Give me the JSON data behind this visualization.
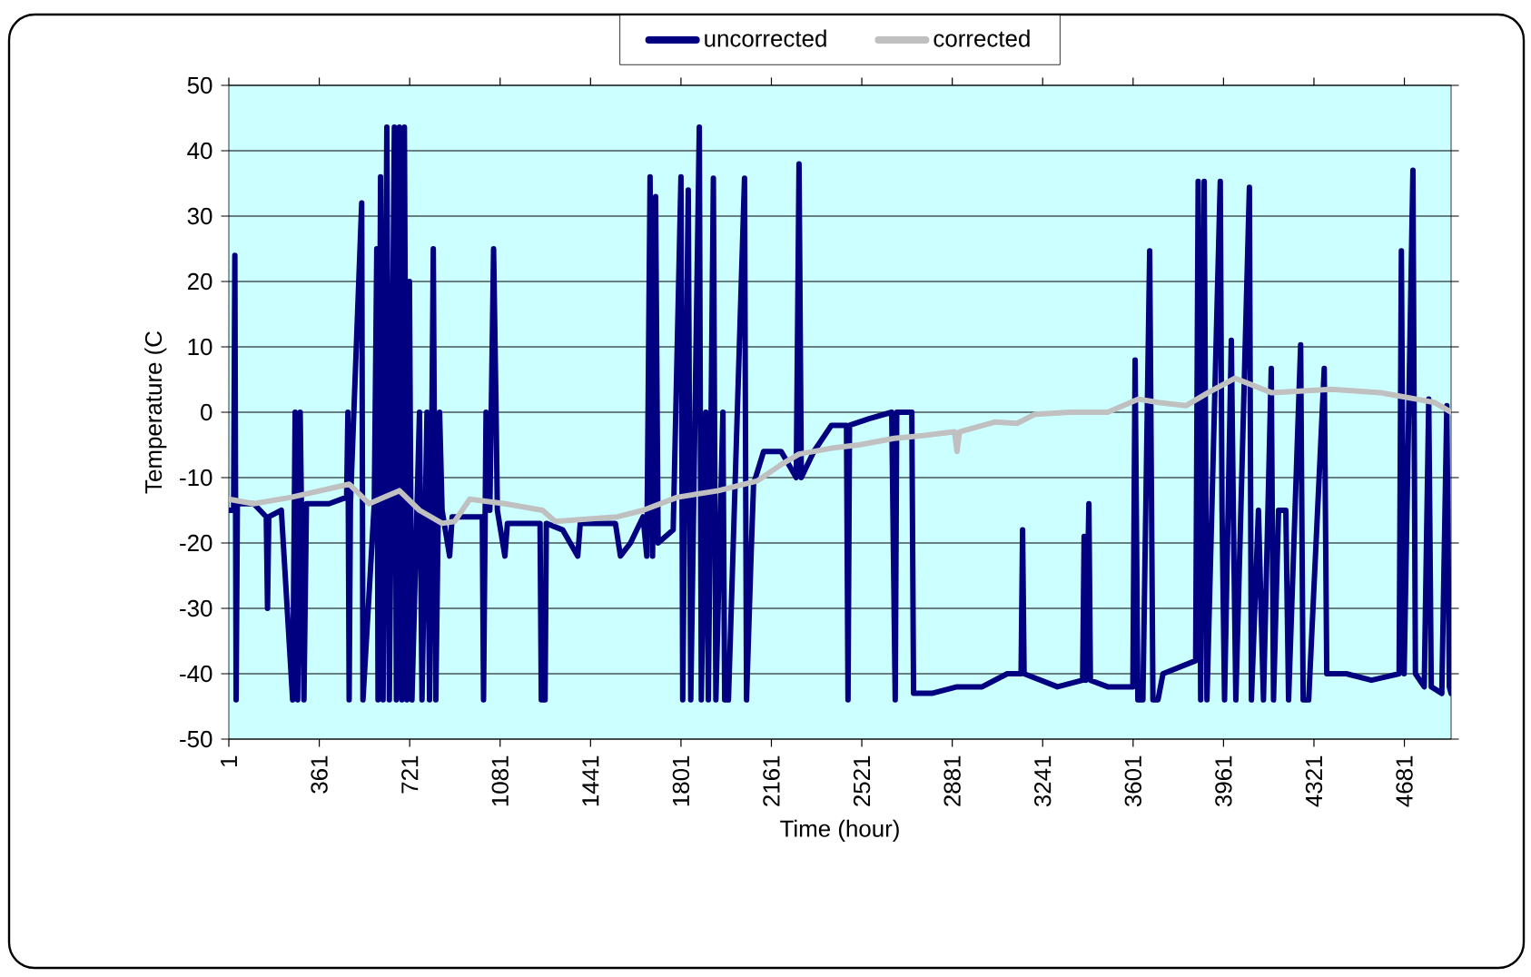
{
  "chart_data": {
    "type": "line",
    "xlabel": "Time (hour)",
    "ylabel": "Temperature (C",
    "xlim": [
      1,
      4867
    ],
    "ylim": [
      -50,
      50
    ],
    "xticks": [
      1,
      361,
      721,
      1081,
      1441,
      1801,
      2161,
      2521,
      2881,
      3241,
      3601,
      3961,
      4321,
      4681
    ],
    "yticks": [
      -50,
      -40,
      -30,
      -20,
      -10,
      0,
      10,
      20,
      30,
      40,
      50
    ],
    "grid": "y",
    "legend": "top",
    "marker": "none",
    "line_style": "solid",
    "series": [
      {
        "name": "uncorrected",
        "color": "#000080",
        "x": [
          1,
          20,
          25,
          30,
          35,
          100,
          150,
          155,
          160,
          210,
          255,
          265,
          275,
          285,
          300,
          310,
          400,
          470,
          475,
          480,
          485,
          530,
          535,
          580,
          590,
          595,
          605,
          615,
          630,
          640,
          660,
          668,
          680,
          690,
          700,
          710,
          720,
          730,
          760,
          770,
          790,
          800,
          815,
          825,
          840,
          850,
          880,
          890,
          1010,
          1015,
          1025,
          1040,
          1055,
          1065,
          1070,
          1100,
          1110,
          1240,
          1245,
          1260,
          1265,
          1330,
          1390,
          1400,
          1540,
          1560,
          1600,
          1650,
          1665,
          1678,
          1688,
          1700,
          1710,
          1770,
          1801,
          1808,
          1815,
          1830,
          1840,
          1874,
          1882,
          1900,
          1910,
          1930,
          1940,
          1968,
          1975,
          1990,
          2054,
          2062,
          2080,
          2090,
          2130,
          2200,
          2260,
          2271,
          2280,
          2330,
          2400,
          2460,
          2466,
          2472,
          2550,
          2640,
          2654,
          2660,
          2720,
          2727,
          2800,
          2900,
          3000,
          3100,
          3155,
          3161,
          3167,
          3300,
          3400,
          3406,
          3412,
          3425,
          3431,
          3500,
          3600,
          3609,
          3620,
          3640,
          3667,
          3680,
          3700,
          3720,
          3850,
          3860,
          3870,
          3884,
          3895,
          3948,
          3955,
          3965,
          3992,
          4000,
          4010,
          4064,
          4072,
          4100,
          4120,
          4151,
          4160,
          4180,
          4209,
          4220,
          4268,
          4278,
          4300,
          4362,
          4372,
          4450,
          4550,
          4660,
          4669,
          4680,
          4715,
          4725,
          4760,
          4778,
          4788,
          4830,
          4850,
          4860,
          4867
        ],
        "values": [
          -15,
          -15,
          24,
          -44,
          -14,
          -14,
          -16,
          -30,
          -16,
          -15,
          -44,
          0,
          -44,
          0,
          -44,
          -14,
          -14,
          -13,
          0,
          -44,
          -14,
          32,
          -44,
          -14,
          25,
          -44,
          36,
          -44,
          43.6,
          -44,
          43.6,
          -44,
          43.6,
          -44,
          43.6,
          -44,
          20,
          -44,
          0,
          -44,
          0,
          -44,
          25,
          -44,
          0,
          -15,
          -22,
          -16,
          -16,
          -44,
          0,
          -15,
          25,
          0,
          -15,
          -22,
          -17,
          -17,
          -44,
          -44,
          -17,
          -18,
          -22,
          -17,
          -17,
          -22,
          -20,
          -16,
          -22,
          36,
          -22,
          33,
          -20,
          -18,
          36,
          -44,
          -16,
          34,
          -44,
          43.6,
          -44,
          0,
          -44,
          35.8,
          -44,
          0,
          -44,
          -44,
          35.8,
          -44,
          -22,
          -11,
          -6,
          -6,
          -10,
          38,
          -10,
          -6,
          -2,
          -2,
          -44,
          -2,
          -1,
          0,
          -44,
          0,
          0,
          -43,
          -43,
          -42,
          -42,
          -40,
          -40,
          -18,
          -40,
          -42,
          -41,
          -19,
          -41,
          -14,
          -41,
          -42,
          -42,
          8,
          -44,
          -44,
          24.7,
          -44,
          -44,
          -40,
          -38,
          35.3,
          -44,
          35.3,
          -44,
          35.3,
          -15,
          -44,
          11,
          -15,
          -44,
          34.4,
          -44,
          -15,
          -44,
          6.7,
          -44,
          -15,
          -15,
          -44,
          10.3,
          -44,
          -44,
          6.7,
          -40,
          -40,
          -41,
          -40,
          24.7,
          -40,
          37,
          -40,
          -42,
          2,
          -42,
          -43,
          1,
          -42,
          -43
        ]
      },
      {
        "name": "corrected",
        "color": "#c0c0c0",
        "x": [
          1,
          100,
          250,
          480,
          560,
          620,
          680,
          760,
          850,
          900,
          960,
          1100,
          1250,
          1300,
          1548,
          1650,
          1787,
          1950,
          2105,
          2200,
          2271,
          2400,
          2510,
          2650,
          2756,
          2890,
          2900,
          2910,
          3050,
          3139,
          3211,
          3350,
          3500,
          3623,
          3700,
          3811,
          3900,
          4006,
          4151,
          4250,
          4390,
          4585,
          4730,
          4800,
          4867
        ],
        "values": [
          -13.3,
          -14,
          -13,
          -11,
          -14,
          -13,
          -12,
          -15,
          -17,
          -16.7,
          -13.3,
          -14,
          -15,
          -16.7,
          -16,
          -15,
          -13,
          -12,
          -10.5,
          -8,
          -6.4,
          -5.5,
          -5,
          -4,
          -3.6,
          -3,
          -6,
          -3,
          -1.5,
          -1.7,
          -0.3,
          0,
          0,
          2,
          1.5,
          1,
          3,
          5.2,
          3,
          3.2,
          3.5,
          3,
          2,
          1.5,
          0
        ]
      }
    ]
  }
}
